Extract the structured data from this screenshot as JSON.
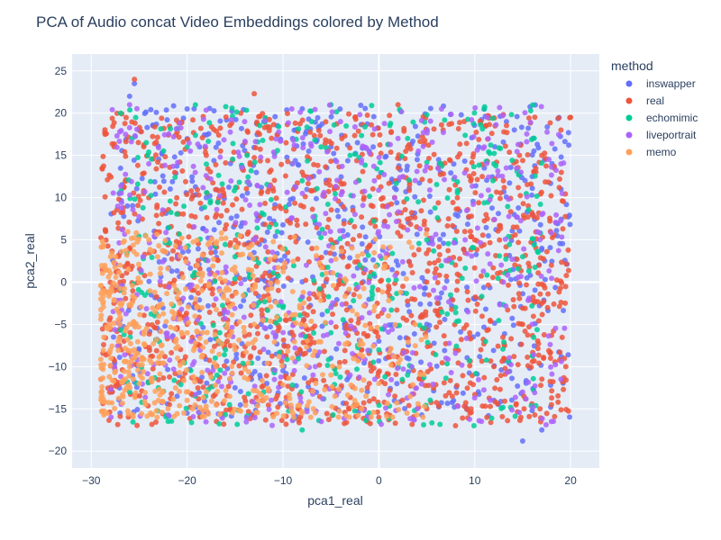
{
  "chart_data": {
    "type": "scatter",
    "title": "PCA of Audio concat Video Embeddings colored by Method",
    "xlabel": "pca1_real",
    "ylabel": "pca2_real",
    "xlim": [
      -32,
      23
    ],
    "ylim": [
      -22,
      27
    ],
    "x_ticks": [
      -30,
      -20,
      -10,
      0,
      10,
      20
    ],
    "y_ticks": [
      -20,
      -15,
      -10,
      -5,
      0,
      5,
      10,
      15,
      20,
      25
    ],
    "x_tick_labels": [
      "−30",
      "−20",
      "−10",
      "0",
      "10",
      "20"
    ],
    "y_tick_labels": [
      "−20",
      "−15",
      "−10",
      "−5",
      "0",
      "5",
      "10",
      "15",
      "20",
      "25"
    ],
    "grid": true,
    "legend": {
      "title": "method",
      "position": "right"
    },
    "series": [
      {
        "name": "inswapper",
        "color": "#636efa",
        "points": [
          [
            -25.5,
            23.5
          ],
          [
            -26,
            22
          ],
          [
            -20,
            20.5
          ],
          [
            -12,
            19
          ],
          [
            -9,
            17
          ],
          [
            -5,
            16
          ],
          [
            -1,
            15.5
          ],
          [
            4,
            14.5
          ],
          [
            11,
            13.5
          ],
          [
            16,
            12.5
          ],
          [
            19,
            11
          ],
          [
            18.5,
            7
          ],
          [
            17,
            4
          ],
          [
            14,
            1.5
          ],
          [
            10,
            -2
          ],
          [
            5,
            -5
          ],
          [
            0,
            -7
          ],
          [
            -5,
            -9
          ],
          [
            -10,
            -10.5
          ],
          [
            -15,
            -12.5
          ],
          [
            -20,
            -15.5
          ],
          [
            -27,
            -15.5
          ],
          [
            15,
            -18.8
          ],
          [
            17,
            -17.5
          ],
          [
            12,
            -14
          ],
          [
            -22,
            5
          ],
          [
            -3,
            -3
          ],
          [
            8,
            8
          ],
          [
            -18,
            10
          ],
          [
            2,
            2
          ]
        ],
        "bulk": {
          "count": 650,
          "x_range": [
            -28,
            20
          ],
          "y_range": [
            -16,
            21
          ]
        }
      },
      {
        "name": "real",
        "color": "#ef553b",
        "points": [
          [
            -25.5,
            24
          ],
          [
            -13,
            22.3
          ],
          [
            2,
            21
          ],
          [
            -28.5,
            6
          ],
          [
            -29,
            -11.5
          ],
          [
            -27,
            -12
          ],
          [
            8,
            -17
          ],
          [
            19,
            18
          ],
          [
            20,
            19.5
          ],
          [
            19.5,
            -10
          ],
          [
            18,
            -14.5
          ],
          [
            17,
            15
          ],
          [
            15,
            -5
          ],
          [
            10,
            5
          ],
          [
            5,
            0
          ],
          [
            -5,
            5
          ],
          [
            -15,
            0
          ],
          [
            -20,
            -5
          ],
          [
            0,
            -16
          ],
          [
            5,
            -15
          ],
          [
            12,
            -10
          ],
          [
            16,
            8
          ],
          [
            18,
            2
          ],
          [
            13,
            12
          ],
          [
            -8,
            13
          ],
          [
            -18,
            15
          ],
          [
            -24,
            10
          ],
          [
            -27,
            0
          ],
          [
            3,
            16
          ],
          [
            8,
            -8
          ]
        ],
        "bulk": {
          "count": 1400,
          "x_range": [
            -29,
            20
          ],
          "y_range": [
            -17,
            20
          ]
        }
      },
      {
        "name": "echomimic",
        "color": "#00cc96",
        "points": [
          [
            -5,
            21
          ],
          [
            -7,
            19
          ],
          [
            11,
            20.5
          ],
          [
            3,
            17
          ],
          [
            -3,
            15
          ],
          [
            -8,
            12
          ],
          [
            -12,
            8
          ],
          [
            -15,
            3
          ],
          [
            -10,
            -3
          ],
          [
            -5,
            -6
          ],
          [
            0,
            -8
          ],
          [
            -12,
            -13
          ],
          [
            -8,
            -17.5
          ],
          [
            -1,
            -15.5
          ],
          [
            -23,
            -12.5
          ],
          [
            -26,
            -13
          ],
          [
            5,
            5
          ],
          [
            12,
            14
          ],
          [
            -20,
            16
          ],
          [
            -2,
            2
          ],
          [
            8,
            -3
          ],
          [
            -16,
            -8
          ],
          [
            3,
            -11
          ],
          [
            15,
            3
          ]
        ],
        "bulk": {
          "count": 420,
          "x_range": [
            -27,
            17
          ],
          "y_range": [
            -17,
            21
          ]
        }
      },
      {
        "name": "liveportrait",
        "color": "#ab63fa",
        "points": [
          [
            -26,
            21
          ],
          [
            -14,
            19
          ],
          [
            -4,
            19
          ],
          [
            2,
            17
          ],
          [
            -9,
            14
          ],
          [
            -13,
            5
          ],
          [
            -17,
            -2
          ],
          [
            -11,
            -6
          ],
          [
            -3,
            -11
          ],
          [
            -6,
            -16.5
          ],
          [
            4,
            -15
          ],
          [
            15,
            -13
          ],
          [
            18,
            -16.5
          ],
          [
            19,
            14
          ],
          [
            17,
            8
          ],
          [
            13,
            0
          ],
          [
            9,
            5
          ],
          [
            -21,
            3
          ],
          [
            -5,
            -3
          ],
          [
            1,
            4
          ],
          [
            7,
            -9
          ],
          [
            -24,
            14
          ],
          [
            16,
            -5
          ],
          [
            11,
            16
          ]
        ],
        "bulk": {
          "count": 520,
          "x_range": [
            -28,
            19.5
          ],
          "y_range": [
            -17,
            21
          ]
        }
      },
      {
        "name": "memo",
        "color": "#ffa15a",
        "points": [
          [
            -27,
            -5
          ],
          [
            -29,
            -2
          ],
          [
            -28,
            -8
          ],
          [
            -26,
            -10
          ],
          [
            -25,
            -12
          ],
          [
            -23,
            -14
          ],
          [
            -20,
            -14
          ],
          [
            -18,
            -13
          ],
          [
            -17,
            -10
          ],
          [
            -15,
            -8
          ],
          [
            -20,
            -6
          ],
          [
            -23,
            -3
          ],
          [
            -25,
            0
          ],
          [
            -27,
            2
          ],
          [
            -28,
            3
          ],
          [
            -24,
            5
          ],
          [
            -21,
            -9
          ],
          [
            -19,
            -3
          ],
          [
            -16,
            -1
          ],
          [
            -13,
            -5
          ],
          [
            -9,
            -9
          ],
          [
            -5,
            -11
          ],
          [
            0,
            -12
          ],
          [
            -8,
            -15.5
          ],
          [
            -12,
            -14
          ],
          [
            1,
            -4
          ],
          [
            -22,
            -15
          ],
          [
            -26,
            -5
          ]
        ],
        "bulk": {
          "count": 600,
          "x_range": [
            -29,
            5
          ],
          "y_range": [
            -16,
            6
          ],
          "bias": "lower-left"
        }
      }
    ]
  }
}
